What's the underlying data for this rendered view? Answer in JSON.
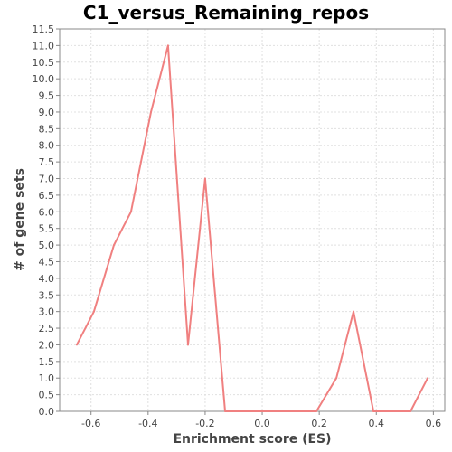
{
  "chart_data": {
    "type": "line",
    "title": "C1_versus_Remaining_repos",
    "xlabel": "Enrichment score (ES)",
    "ylabel": "# of gene sets",
    "xlim": [
      -0.71,
      0.64
    ],
    "ylim": [
      0,
      11.5
    ],
    "xticks": [
      -0.6,
      -0.4,
      -0.2,
      0.0,
      0.2,
      0.4,
      0.6
    ],
    "xtick_labels": [
      "-0.6",
      "-0.4",
      "-0.2",
      "0.0",
      "0.2",
      "0.4",
      "0.6"
    ],
    "yticks": [
      0,
      0.5,
      1,
      1.5,
      2,
      2.5,
      3,
      3.5,
      4,
      4.5,
      5,
      5.5,
      6,
      6.5,
      7,
      7.5,
      8,
      8.5,
      9,
      9.5,
      10,
      10.5,
      11,
      11.5
    ],
    "ytick_labels": [
      "0.0",
      "0.5",
      "1.0",
      "1.5",
      "2.0",
      "2.5",
      "3.0",
      "3.5",
      "4.0",
      "4.5",
      "5.0",
      "5.5",
      "6.0",
      "6.5",
      "7.0",
      "7.5",
      "8.0",
      "8.5",
      "9.0",
      "9.5",
      "10.0",
      "10.5",
      "11.0",
      "11.5"
    ],
    "grid": true,
    "series": [
      {
        "color": "#f08080",
        "x": [
          -0.65,
          -0.59,
          -0.52,
          -0.46,
          -0.39,
          -0.33,
          -0.26,
          -0.2,
          -0.13,
          -0.07,
          0.0,
          0.06,
          0.13,
          0.19,
          0.26,
          0.32,
          0.39,
          0.45,
          0.52,
          0.58
        ],
        "y": [
          2,
          3,
          5,
          6,
          9,
          11,
          2,
          7,
          0,
          0,
          0,
          0,
          0,
          0,
          1,
          3,
          0,
          0,
          0,
          1
        ]
      }
    ]
  }
}
